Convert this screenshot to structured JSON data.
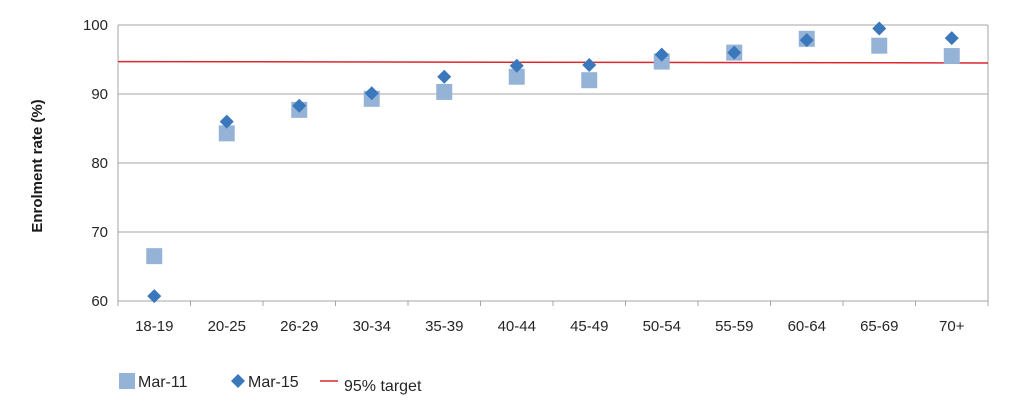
{
  "chart_data": {
    "type": "scatter",
    "categories": [
      "18-19",
      "20-25",
      "26-29",
      "30-34",
      "35-39",
      "40-44",
      "45-49",
      "50-54",
      "55-59",
      "60-64",
      "65-69",
      "70+"
    ],
    "series": [
      {
        "name": "Mar-11",
        "marker": "square",
        "color": "#95B3D7",
        "values": [
          66.5,
          84.3,
          87.7,
          89.3,
          90.3,
          92.5,
          92.0,
          94.7,
          96.0,
          98.0,
          97.0,
          95.5
        ]
      },
      {
        "name": "Mar-15",
        "marker": "diamond",
        "color": "#3A77BB",
        "values": [
          60.7,
          86.0,
          88.3,
          90.1,
          92.5,
          94.1,
          94.2,
          95.7,
          96.0,
          97.8,
          99.5,
          98.1
        ]
      }
    ],
    "target": {
      "name": "95% target",
      "color": "#D9282E",
      "start": 94.7,
      "end": 94.5
    },
    "ylabel": "Enrolment rate (%)",
    "xlabel": "",
    "ylim": [
      60,
      100
    ],
    "yticks": [
      60,
      70,
      80,
      90,
      100
    ],
    "grid": true,
    "gridColor": "#A6A6A6",
    "legend": "bottom-left"
  }
}
